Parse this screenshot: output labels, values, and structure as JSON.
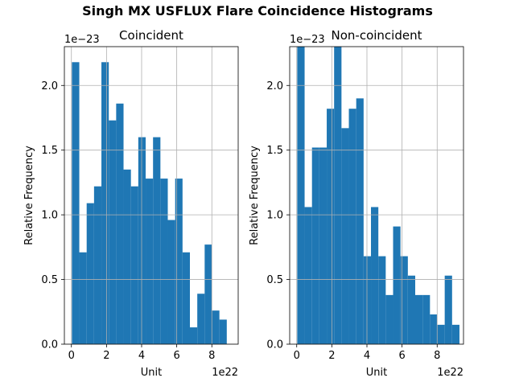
{
  "figure_title": "Singh MX USFLUX Flare Coincidence Histograms",
  "bar_color": "#1f77b4",
  "chart_data": [
    {
      "type": "bar",
      "title": "Coincident",
      "xlabel": "Unit",
      "ylabel": "Relative Frequency",
      "x_offset_label": "1e22",
      "y_offset_label": "1e−23",
      "xlim": [
        -0.4,
        9.5
      ],
      "ylim": [
        0,
        2.3
      ],
      "xticks": [
        0,
        2,
        4,
        6,
        8
      ],
      "yticks": [
        0.0,
        0.5,
        1.0,
        1.5,
        2.0
      ],
      "xtick_labels": [
        "0",
        "2",
        "4",
        "6",
        "8"
      ],
      "ytick_labels": [
        "0.0",
        "0.5",
        "1.0",
        "1.5",
        "2.0"
      ],
      "grid": true,
      "bin_edges": [
        0.03,
        0.45,
        0.87,
        1.29,
        1.71,
        2.13,
        2.55,
        2.97,
        3.39,
        3.81,
        4.23,
        4.65,
        5.07,
        5.49,
        5.91,
        6.33,
        6.75,
        7.17,
        7.59,
        8.01,
        8.43,
        8.85
      ],
      "values": [
        2.18,
        0.71,
        1.09,
        1.22,
        2.18,
        1.73,
        1.86,
        1.35,
        1.22,
        1.6,
        1.28,
        1.6,
        1.28,
        0.96,
        1.28,
        0.71,
        0.13,
        0.39,
        0.77,
        0.26,
        0.19
      ]
    },
    {
      "type": "bar",
      "title": "Non-coincident",
      "xlabel": "Unit",
      "ylabel": "Relative Frequency",
      "x_offset_label": "1e22",
      "y_offset_label": "1e−23",
      "xlim": [
        -0.4,
        9.5
      ],
      "ylim": [
        0,
        2.3
      ],
      "xticks": [
        0,
        2,
        4,
        6,
        8
      ],
      "yticks": [
        0.0,
        0.5,
        1.0,
        1.5,
        2.0
      ],
      "xtick_labels": [
        "0",
        "2",
        "4",
        "6",
        "8"
      ],
      "ytick_labels": [
        "0.0",
        "0.5",
        "1.0",
        "1.5",
        "2.0"
      ],
      "grid": true,
      "bin_edges": [
        0.03,
        0.45,
        0.87,
        1.29,
        1.71,
        2.13,
        2.55,
        2.97,
        3.39,
        3.81,
        4.23,
        4.65,
        5.07,
        5.49,
        5.91,
        6.33,
        6.75,
        7.17,
        7.59,
        8.01,
        8.43,
        8.85,
        9.27
      ],
      "values": [
        2.3,
        1.06,
        1.52,
        1.52,
        1.82,
        2.3,
        1.67,
        1.82,
        1.9,
        0.68,
        1.06,
        0.68,
        0.38,
        0.91,
        0.68,
        0.53,
        0.38,
        0.38,
        0.23,
        0.15,
        0.53,
        0.15
      ]
    }
  ]
}
